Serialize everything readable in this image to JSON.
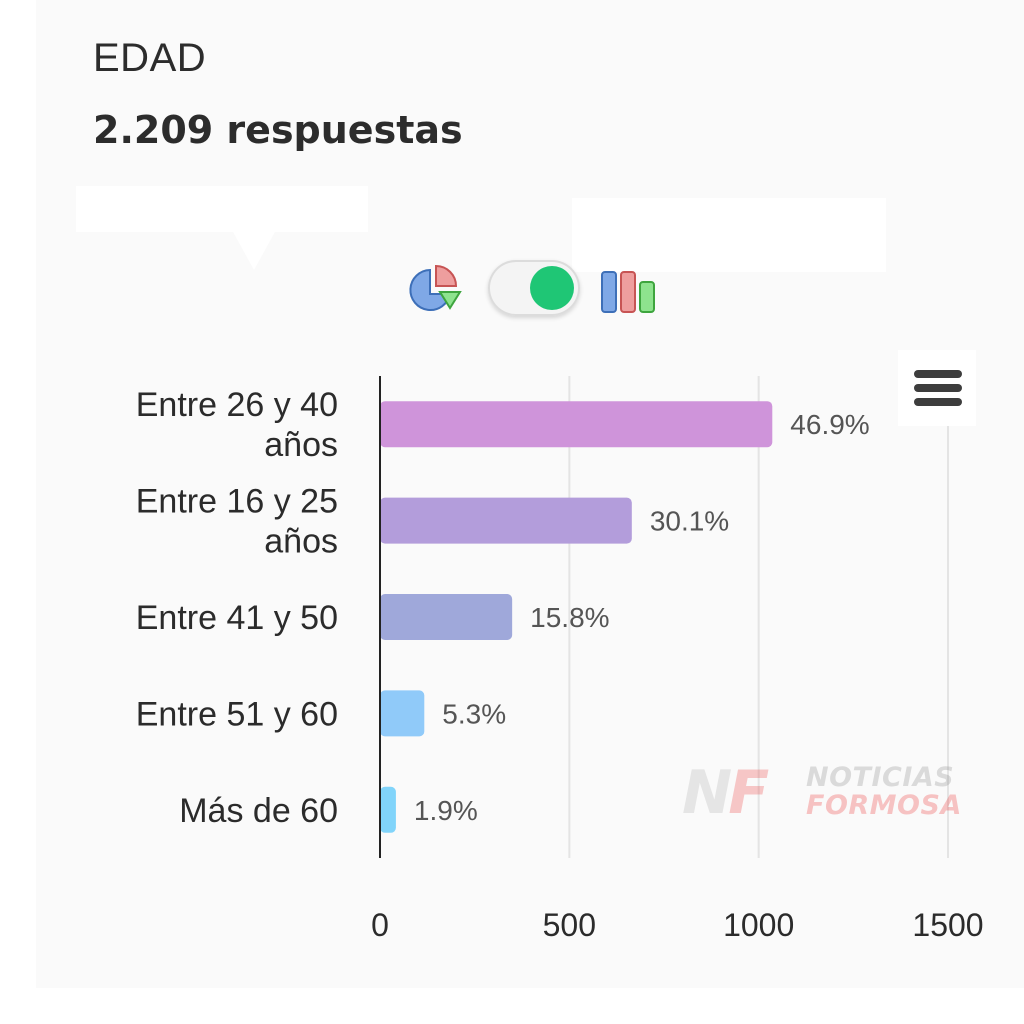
{
  "header": {
    "title": "EDAD",
    "responses": "2.209 respuestas"
  },
  "controls": {
    "pie_icon": "pie-chart-icon",
    "toggle_state": "on",
    "toggle_color": "#1fc675",
    "bar_icon": "bar-chart-icon",
    "menu_icon": "hamburger-menu-icon"
  },
  "watermark": {
    "mark": "NF",
    "line1": "NOTICIAS",
    "line2": "FORMOSA"
  },
  "chart_data": {
    "type": "bar",
    "orientation": "horizontal",
    "categories": [
      [
        "Entre 26 y 40",
        "años"
      ],
      [
        "Entre 16 y 25",
        "años"
      ],
      [
        "Entre 41 y 50"
      ],
      [
        "Entre 51 y 60"
      ],
      [
        "Más de 60"
      ]
    ],
    "values": [
      1036,
      665,
      349,
      117,
      42
    ],
    "labels": [
      "46.9%",
      "30.1%",
      "15.8%",
      "5.3%",
      "1.9%"
    ],
    "colors": [
      "#cf94da",
      "#b39ddb",
      "#9fa8da",
      "#90caf9",
      "#81d4fa"
    ],
    "xlim": [
      0,
      1500
    ],
    "xticks": [
      "0",
      "500",
      "1000",
      "1500"
    ],
    "grid": true
  }
}
